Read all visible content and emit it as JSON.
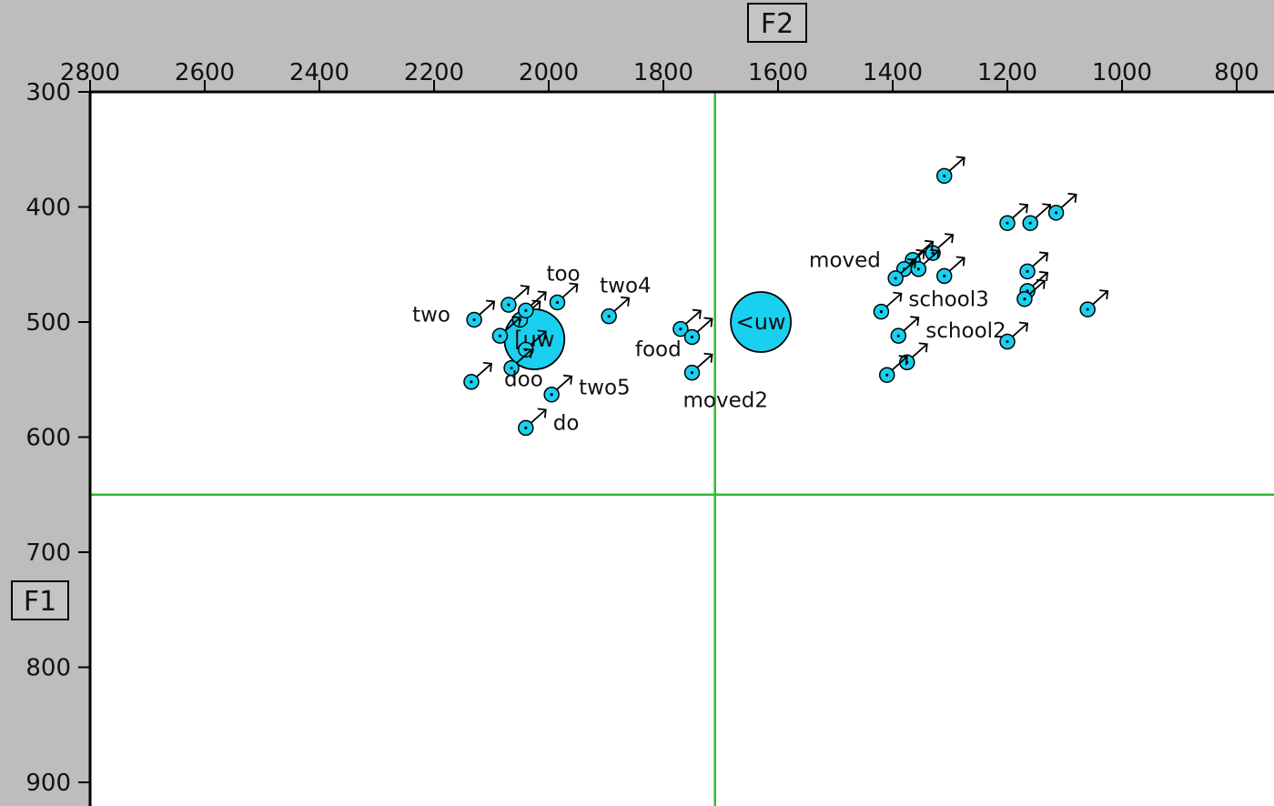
{
  "chart_data": {
    "type": "scatter",
    "x_axis": {
      "label": "F2",
      "range": [
        2800,
        700
      ],
      "reversed": true,
      "position": "top",
      "ticks": [
        2800,
        2600,
        2400,
        2200,
        2000,
        1800,
        1600,
        1400,
        1200,
        1000,
        800
      ]
    },
    "y_axis": {
      "label": "F1",
      "range": [
        300,
        920
      ],
      "reversed": true,
      "position": "left",
      "ticks": [
        300,
        400,
        500,
        600,
        700,
        800,
        900
      ]
    },
    "reference_lines": {
      "F2": 1710,
      "F1": 650,
      "color": "#2ebd2e"
    },
    "point_color": "#19d0f0",
    "means": [
      {
        "label": "[uw",
        "F2": 2025,
        "F1": 515
      },
      {
        "label": "<uw",
        "F2": 1630,
        "F1": 500
      }
    ],
    "points": [
      {
        "F2": 2130,
        "F1": 498,
        "label": "two"
      },
      {
        "F2": 2070,
        "F1": 485,
        "label": ""
      },
      {
        "F2": 2050,
        "F1": 498,
        "label": ""
      },
      {
        "F2": 2040,
        "F1": 490,
        "label": ""
      },
      {
        "F2": 2085,
        "F1": 512,
        "label": ""
      },
      {
        "F2": 2040,
        "F1": 524,
        "label": ""
      },
      {
        "F2": 2065,
        "F1": 540,
        "label": "doo"
      },
      {
        "F2": 2135,
        "F1": 552,
        "label": ""
      },
      {
        "F2": 1985,
        "F1": 483,
        "label": "too"
      },
      {
        "F2": 1895,
        "F1": 495,
        "label": "two4"
      },
      {
        "F2": 1995,
        "F1": 563,
        "label": "two5"
      },
      {
        "F2": 2040,
        "F1": 592,
        "label": "do"
      },
      {
        "F2": 1770,
        "F1": 506,
        "label": "food"
      },
      {
        "F2": 1750,
        "F1": 513,
        "label": ""
      },
      {
        "F2": 1750,
        "F1": 544,
        "label": "moved2"
      },
      {
        "F2": 1310,
        "F1": 373,
        "label": ""
      },
      {
        "F2": 1200,
        "F1": 414,
        "label": ""
      },
      {
        "F2": 1160,
        "F1": 414,
        "label": ""
      },
      {
        "F2": 1115,
        "F1": 405,
        "label": ""
      },
      {
        "F2": 1330,
        "F1": 440,
        "label": ""
      },
      {
        "F2": 1365,
        "F1": 446,
        "label": "moved"
      },
      {
        "F2": 1380,
        "F1": 454,
        "label": ""
      },
      {
        "F2": 1355,
        "F1": 454,
        "label": ""
      },
      {
        "F2": 1395,
        "F1": 462,
        "label": ""
      },
      {
        "F2": 1310,
        "F1": 460,
        "label": ""
      },
      {
        "F2": 1165,
        "F1": 456,
        "label": ""
      },
      {
        "F2": 1165,
        "F1": 473,
        "label": ""
      },
      {
        "F2": 1170,
        "F1": 480,
        "label": ""
      },
      {
        "F2": 1060,
        "F1": 489,
        "label": ""
      },
      {
        "F2": 1420,
        "F1": 491,
        "label": "school3"
      },
      {
        "F2": 1390,
        "F1": 512,
        "label": "school2"
      },
      {
        "F2": 1200,
        "F1": 517,
        "label": ""
      },
      {
        "F2": 1375,
        "F1": 535,
        "label": ""
      },
      {
        "F2": 1410,
        "F1": 546,
        "label": ""
      }
    ]
  }
}
